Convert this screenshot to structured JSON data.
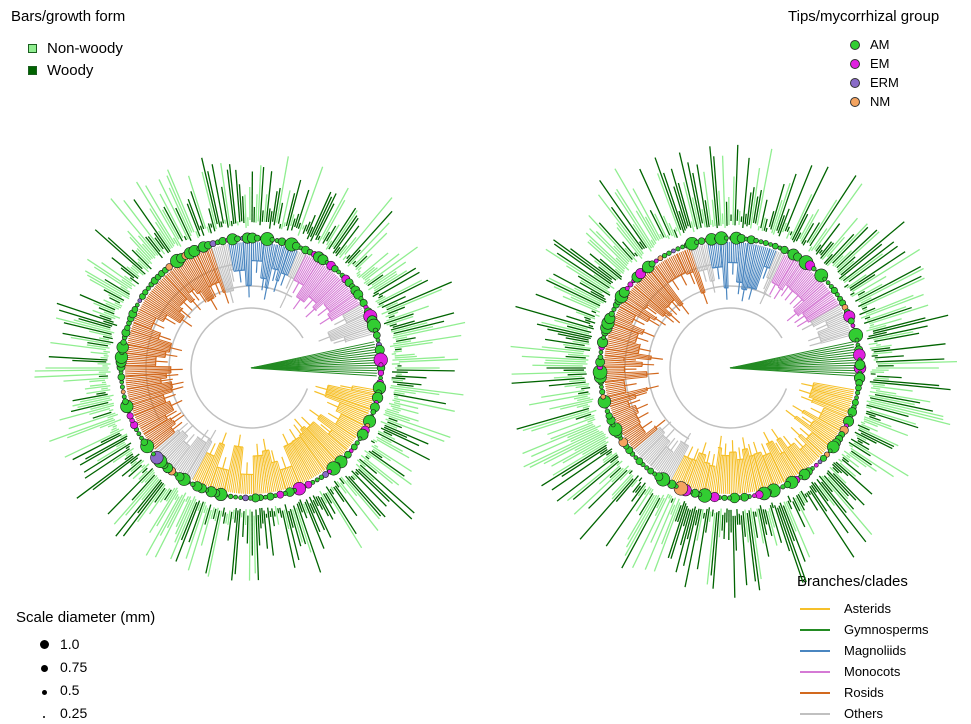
{
  "growth_legend": {
    "title": "Bars/growth form",
    "items": [
      {
        "label": "Non-woody",
        "color": "#90ee90"
      },
      {
        "label": "Woody",
        "color": "#006400"
      }
    ]
  },
  "myco_legend": {
    "title": "Tips/mycorrhizal group",
    "items": [
      {
        "label": "AM",
        "color": "#32cd32"
      },
      {
        "label": "EM",
        "color": "#e020e0"
      },
      {
        "label": "ERM",
        "color": "#8a6cc8"
      },
      {
        "label": "NM",
        "color": "#f4a460"
      }
    ]
  },
  "scale_legend": {
    "title": "Scale diameter (mm)",
    "items": [
      {
        "label": "1.0",
        "value": 1.0
      },
      {
        "label": "0.75",
        "value": 0.75
      },
      {
        "label": "0.5",
        "value": 0.5
      },
      {
        "label": "0.25",
        "value": 0.25
      }
    ]
  },
  "clade_legend": {
    "title": "Branches/clades",
    "items": [
      {
        "label": "Asterids",
        "color": "#f6c02a"
      },
      {
        "label": "Gymnosperms",
        "color": "#238b23"
      },
      {
        "label": "Magnoliids",
        "color": "#4a86c0"
      },
      {
        "label": "Monocots",
        "color": "#d57ad5"
      },
      {
        "label": "Rosids",
        "color": "#d2691e"
      },
      {
        "label": "Others",
        "color": "#c0c0c0"
      }
    ]
  },
  "colors": {
    "nonwoody": "#90ee90",
    "woody": "#006400",
    "tip_stroke": "#1a1a1a"
  }
}
